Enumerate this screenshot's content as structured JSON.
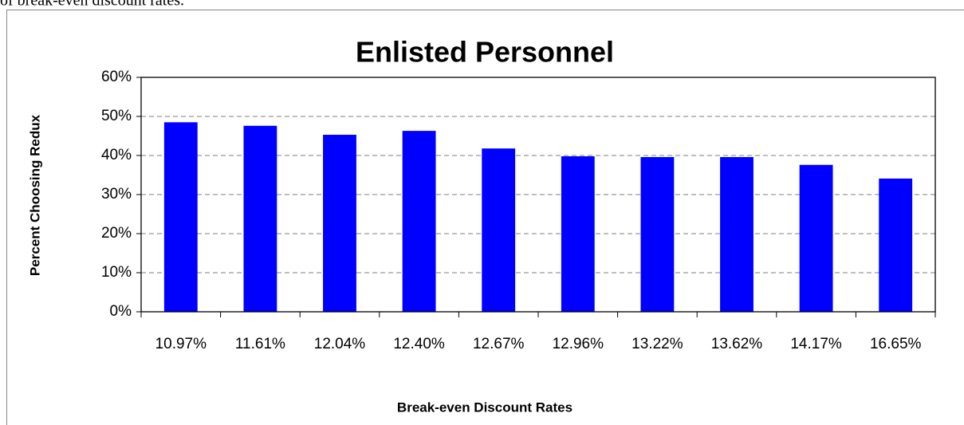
{
  "header_text": "of break-even discount rates.",
  "chart_data": {
    "type": "bar",
    "title": "Enlisted Personnel",
    "x_label": "Break-even Discount Rates",
    "y_label": "Percent Choosing Redux",
    "categories": [
      "10.97%",
      "11.61%",
      "12.04%",
      "12.40%",
      "12.67%",
      "12.96%",
      "13.22%",
      "13.62%",
      "14.17%",
      "16.65%"
    ],
    "values": [
      48.5,
      47.6,
      45.3,
      46.3,
      41.8,
      39.8,
      39.6,
      39.6,
      37.6,
      34.1
    ],
    "color": "#0000ff",
    "ylim": [
      0,
      60
    ],
    "yticks": [
      {
        "value": 0,
        "label": "0%"
      },
      {
        "value": 10,
        "label": "10%"
      },
      {
        "value": 20,
        "label": "20%"
      },
      {
        "value": 30,
        "label": "30%"
      },
      {
        "value": 40,
        "label": "40%"
      },
      {
        "value": 50,
        "label": "50%"
      },
      {
        "value": 60,
        "label": "60%"
      }
    ],
    "grid": true
  }
}
